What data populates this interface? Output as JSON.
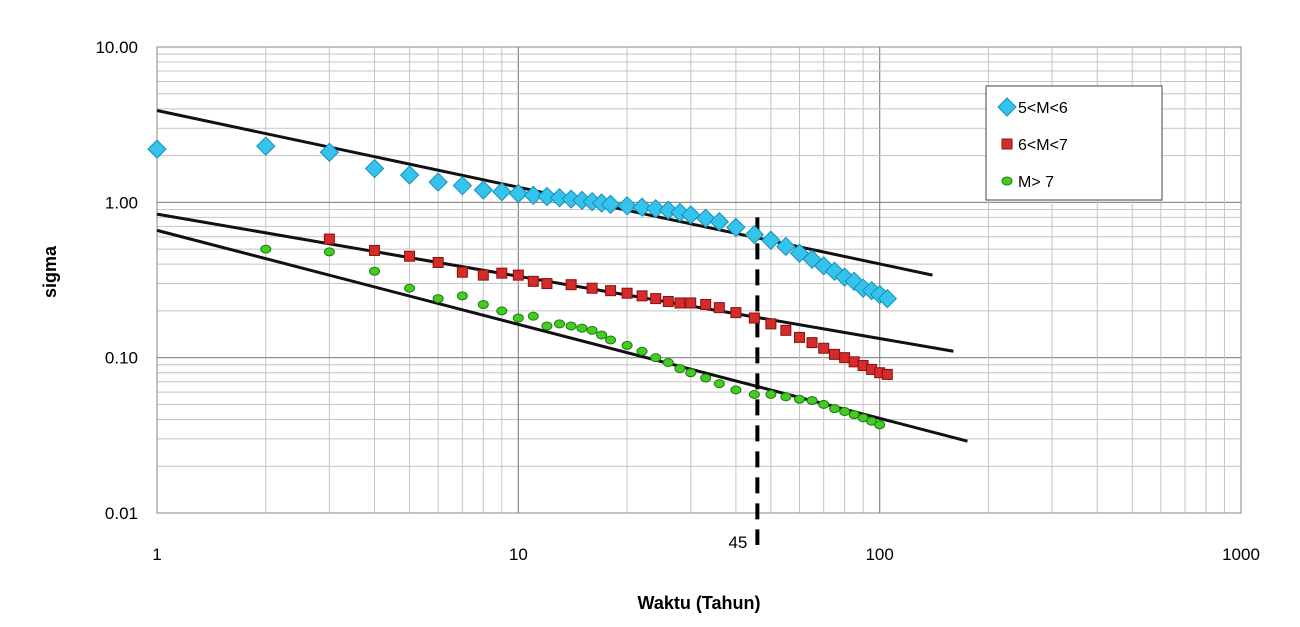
{
  "chart_data": {
    "type": "scatter",
    "xlabel": "Waktu (Tahun)",
    "ylabel": "sigma",
    "xscale": "log",
    "yscale": "log",
    "xlim": [
      1,
      1000
    ],
    "ylim": [
      0.01,
      10
    ],
    "x_tick_labels": [
      "1",
      "10",
      "100",
      "1000"
    ],
    "y_tick_labels": [
      "0.01",
      "0.10",
      "1.00",
      "10.00"
    ],
    "annotation": {
      "text": "45",
      "x": 45
    },
    "grid": true,
    "legend_position": "top-right",
    "series": [
      {
        "name": "5<M<6",
        "marker": "diamond",
        "color": "#33c3ec",
        "points": [
          [
            1,
            2.2
          ],
          [
            2,
            2.3
          ],
          [
            3,
            2.1
          ],
          [
            4,
            1.65
          ],
          [
            5,
            1.5
          ],
          [
            6,
            1.35
          ],
          [
            7,
            1.28
          ],
          [
            8,
            1.2
          ],
          [
            9,
            1.17
          ],
          [
            10,
            1.14
          ],
          [
            11,
            1.11
          ],
          [
            12,
            1.09
          ],
          [
            13,
            1.07
          ],
          [
            14,
            1.05
          ],
          [
            15,
            1.03
          ],
          [
            16,
            1.01
          ],
          [
            17,
            0.99
          ],
          [
            18,
            0.97
          ],
          [
            20,
            0.95
          ],
          [
            22,
            0.93
          ],
          [
            24,
            0.91
          ],
          [
            26,
            0.89
          ],
          [
            28,
            0.86
          ],
          [
            30,
            0.83
          ],
          [
            33,
            0.79
          ],
          [
            36,
            0.75
          ],
          [
            40,
            0.69
          ],
          [
            45,
            0.62
          ],
          [
            50,
            0.57
          ],
          [
            55,
            0.52
          ],
          [
            60,
            0.47
          ],
          [
            65,
            0.43
          ],
          [
            70,
            0.39
          ],
          [
            75,
            0.36
          ],
          [
            80,
            0.33
          ],
          [
            85,
            0.31
          ],
          [
            90,
            0.28
          ],
          [
            95,
            0.27
          ],
          [
            100,
            0.255
          ],
          [
            105,
            0.24
          ]
        ]
      },
      {
        "name": "6<M<7",
        "marker": "square",
        "color": "#d42b2b",
        "points": [
          [
            3,
            0.58
          ],
          [
            4,
            0.49
          ],
          [
            5,
            0.45
          ],
          [
            6,
            0.41
          ],
          [
            7,
            0.355
          ],
          [
            8,
            0.34
          ],
          [
            9,
            0.35
          ],
          [
            10,
            0.34
          ],
          [
            11,
            0.31
          ],
          [
            12,
            0.3
          ],
          [
            14,
            0.295
          ],
          [
            16,
            0.28
          ],
          [
            18,
            0.27
          ],
          [
            20,
            0.26
          ],
          [
            22,
            0.25
          ],
          [
            24,
            0.24
          ],
          [
            26,
            0.23
          ],
          [
            28,
            0.225
          ],
          [
            30,
            0.225
          ],
          [
            33,
            0.22
          ],
          [
            36,
            0.21
          ],
          [
            40,
            0.195
          ],
          [
            45,
            0.18
          ],
          [
            50,
            0.165
          ],
          [
            55,
            0.15
          ],
          [
            60,
            0.135
          ],
          [
            65,
            0.125
          ],
          [
            70,
            0.115
          ],
          [
            75,
            0.105
          ],
          [
            80,
            0.1
          ],
          [
            85,
            0.094
          ],
          [
            90,
            0.089
          ],
          [
            95,
            0.084
          ],
          [
            100,
            0.08
          ],
          [
            105,
            0.078
          ]
        ]
      },
      {
        "name": "M> 7",
        "marker": "circle",
        "color": "#44cc22",
        "points": [
          [
            2,
            0.5
          ],
          [
            3,
            0.48
          ],
          [
            4,
            0.36
          ],
          [
            5,
            0.28
          ],
          [
            6,
            0.24
          ],
          [
            7,
            0.25
          ],
          [
            8,
            0.22
          ],
          [
            9,
            0.2
          ],
          [
            10,
            0.18
          ],
          [
            11,
            0.185
          ],
          [
            12,
            0.16
          ],
          [
            13,
            0.165
          ],
          [
            14,
            0.16
          ],
          [
            15,
            0.155
          ],
          [
            16,
            0.15
          ],
          [
            17,
            0.14
          ],
          [
            18,
            0.13
          ],
          [
            20,
            0.12
          ],
          [
            22,
            0.11
          ],
          [
            24,
            0.1
          ],
          [
            26,
            0.093
          ],
          [
            28,
            0.085
          ],
          [
            30,
            0.08
          ],
          [
            33,
            0.074
          ],
          [
            36,
            0.068
          ],
          [
            40,
            0.062
          ],
          [
            45,
            0.058
          ],
          [
            50,
            0.058
          ],
          [
            55,
            0.056
          ],
          [
            60,
            0.054
          ],
          [
            65,
            0.053
          ],
          [
            70,
            0.05
          ],
          [
            75,
            0.047
          ],
          [
            80,
            0.045
          ],
          [
            85,
            0.043
          ],
          [
            90,
            0.041
          ],
          [
            95,
            0.039
          ],
          [
            100,
            0.037
          ]
        ]
      }
    ],
    "trend_lines": [
      {
        "from": [
          1,
          3.9
        ],
        "to": [
          140,
          0.34
        ]
      },
      {
        "from": [
          1,
          0.84
        ],
        "to": [
          160,
          0.11
        ]
      },
      {
        "from": [
          1,
          0.66
        ],
        "to": [
          175,
          0.029
        ]
      }
    ],
    "vertical_marker": {
      "x": 45,
      "style": "dashed"
    }
  }
}
